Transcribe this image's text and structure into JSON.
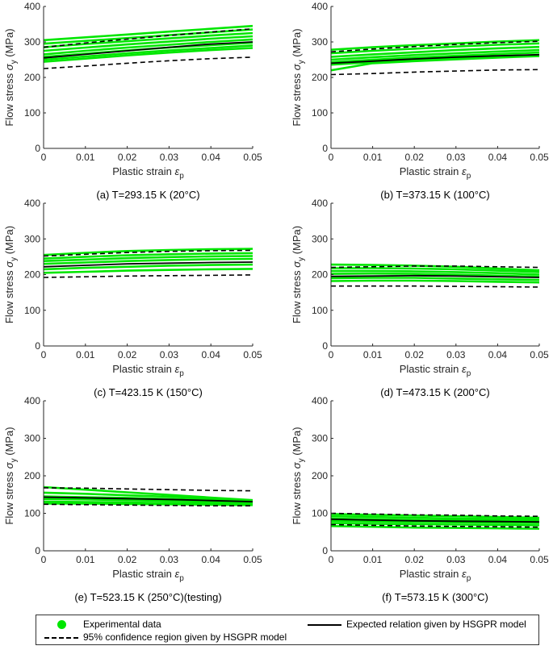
{
  "colors": {
    "experimental": "#00e600",
    "expected": "#000000",
    "confidence": "#000000",
    "axis": "#262626"
  },
  "legend": {
    "experimental": "Experimental data",
    "expected": "Expected relation given by HSGPR model",
    "confidence": "95% confidence region given by HSGPR model"
  },
  "chart_data": [
    {
      "type": "line",
      "caption": "(a) T=293.15 K (20°C)",
      "xlabel": "Plastic strain ε_p",
      "ylabel": "Flow stress σ_y (MPa)",
      "xlim": [
        0,
        0.05
      ],
      "ylim": [
        0,
        400
      ],
      "xticks": [
        "0",
        "0.01",
        "0.02",
        "0.03",
        "0.04",
        "0.05"
      ],
      "yticks": [
        "0",
        "100",
        "200",
        "300",
        "400"
      ],
      "x": [
        0,
        0.01,
        0.02,
        0.03,
        0.04,
        0.05
      ],
      "expected": [
        255,
        265,
        275,
        285,
        294,
        300
      ],
      "ci_upper": [
        285,
        297,
        308,
        318,
        328,
        337
      ],
      "ci_lower": [
        225,
        232,
        240,
        247,
        253,
        257
      ],
      "experimental": [
        [
          305,
          313,
          321,
          329,
          337,
          345
        ],
        [
          295,
          303,
          311,
          319,
          327,
          335
        ],
        [
          285,
          294,
          302,
          310,
          318,
          325
        ],
        [
          275,
          284,
          293,
          301,
          309,
          316
        ],
        [
          265,
          275,
          284,
          292,
          300,
          307
        ],
        [
          258,
          267,
          276,
          284,
          291,
          298
        ],
        [
          250,
          259,
          268,
          276,
          283,
          290
        ],
        [
          244,
          253,
          262,
          270,
          277,
          283
        ]
      ]
    },
    {
      "type": "line",
      "caption": "(b) T=373.15 K (100°C)",
      "xlabel": "Plastic strain ε_p",
      "ylabel": "Flow stress σ_y (MPa)",
      "xlim": [
        0,
        0.05
      ],
      "ylim": [
        0,
        400
      ],
      "xticks": [
        "0",
        "0.01",
        "0.02",
        "0.03",
        "0.04",
        "0.05"
      ],
      "yticks": [
        "0",
        "100",
        "200",
        "300",
        "400"
      ],
      "x": [
        0,
        0.01,
        0.02,
        0.03,
        0.04,
        0.05
      ],
      "expected": [
        240,
        246,
        252,
        257,
        261,
        264
      ],
      "ci_upper": [
        272,
        280,
        287,
        293,
        298,
        302
      ],
      "ci_lower": [
        208,
        211,
        215,
        218,
        221,
        222
      ],
      "experimental": [
        [
          278,
          285,
          291,
          296,
          301,
          305
        ],
        [
          268,
          275,
          281,
          287,
          292,
          296
        ],
        [
          258,
          265,
          271,
          277,
          282,
          286
        ],
        [
          250,
          257,
          263,
          268,
          273,
          277
        ],
        [
          243,
          250,
          256,
          261,
          266,
          270
        ],
        [
          236,
          243,
          249,
          254,
          259,
          263
        ],
        [
          220,
          240,
          246,
          251,
          256,
          260
        ]
      ]
    },
    {
      "type": "line",
      "caption": "(c) T=423.15 K (150°C)",
      "xlabel": "Plastic strain ε_p",
      "ylabel": "Flow stress σ_y (MPa)",
      "xlim": [
        0,
        0.05
      ],
      "ylim": [
        0,
        400
      ],
      "xticks": [
        "0",
        "0.01",
        "0.02",
        "0.03",
        "0.04",
        "0.05"
      ],
      "yticks": [
        "0",
        "100",
        "200",
        "300",
        "400"
      ],
      "x": [
        0,
        0.01,
        0.02,
        0.03,
        0.04,
        0.05
      ],
      "expected": [
        222,
        226,
        230,
        232,
        234,
        235
      ],
      "ci_upper": [
        252,
        257,
        262,
        265,
        267,
        268
      ],
      "ci_lower": [
        192,
        194,
        196,
        197,
        198,
        199
      ],
      "experimental": [
        [
          255,
          261,
          266,
          269,
          271,
          272
        ],
        [
          245,
          250,
          254,
          257,
          259,
          260
        ],
        [
          238,
          242,
          246,
          249,
          251,
          252
        ],
        [
          230,
          234,
          238,
          241,
          243,
          244
        ],
        [
          215,
          219,
          222,
          225,
          227,
          228
        ],
        [
          205,
          208,
          211,
          213,
          215,
          216
        ]
      ]
    },
    {
      "type": "line",
      "caption": "(d) T=473.15 K (200°C)",
      "xlabel": "Plastic strain ε_p",
      "ylabel": "Flow stress σ_y (MPa)",
      "xlim": [
        0,
        0.05
      ],
      "ylim": [
        0,
        400
      ],
      "xticks": [
        "0",
        "0.01",
        "0.02",
        "0.03",
        "0.04",
        "0.05"
      ],
      "yticks": [
        "0",
        "100",
        "200",
        "300",
        "400"
      ],
      "x": [
        0,
        0.01,
        0.02,
        0.03,
        0.04,
        0.05
      ],
      "expected": [
        195,
        196,
        197,
        196,
        194,
        192
      ],
      "ci_upper": [
        220,
        222,
        224,
        224,
        222,
        220
      ],
      "ci_lower": [
        168,
        168,
        168,
        167,
        166,
        165
      ],
      "experimental": [
        [
          228,
          227,
          225,
          222,
          217,
          212
        ],
        [
          218,
          218,
          217,
          215,
          211,
          207
        ],
        [
          210,
          210,
          209,
          207,
          204,
          200
        ],
        [
          202,
          203,
          202,
          200,
          197,
          194
        ],
        [
          190,
          191,
          191,
          189,
          187,
          185
        ],
        [
          182,
          183,
          183,
          182,
          180,
          178
        ]
      ]
    },
    {
      "type": "line",
      "caption": "(e) T=523.15 K (250°C)(testing)",
      "xlabel": "Plastic strain ε_p",
      "ylabel": "Flow stress σ_y (MPa)",
      "xlim": [
        0,
        0.05
      ],
      "ylim": [
        0,
        400
      ],
      "xticks": [
        "0",
        "0.01",
        "0.02",
        "0.03",
        "0.04",
        "0.05"
      ],
      "yticks": [
        "0",
        "100",
        "200",
        "300",
        "400"
      ],
      "x": [
        0,
        0.01,
        0.02,
        0.03,
        0.04,
        0.05
      ],
      "expected": [
        143,
        141,
        139,
        137,
        134,
        131
      ],
      "ci_upper": [
        168,
        167,
        165,
        163,
        161,
        160
      ],
      "ci_lower": [
        124,
        123,
        122,
        121,
        120,
        120
      ],
      "experimental": [
        [
          170,
          163,
          156,
          149,
          142,
          135
        ],
        [
          155,
          152,
          148,
          144,
          139,
          134
        ],
        [
          145,
          143,
          141,
          138,
          135,
          132
        ],
        [
          138,
          137,
          135,
          133,
          131,
          129
        ],
        [
          131,
          130,
          129,
          127,
          126,
          125
        ],
        [
          126,
          126,
          125,
          124,
          123,
          122
        ]
      ]
    },
    {
      "type": "line",
      "caption": "(f) T=573.15 K (300°C)",
      "xlabel": "Plastic strain ε_p",
      "ylabel": "Flow stress σ_y (MPa)",
      "xlim": [
        0,
        0.05
      ],
      "ylim": [
        0,
        400
      ],
      "xticks": [
        "0",
        "0.01",
        "0.02",
        "0.03",
        "0.04",
        "0.05"
      ],
      "yticks": [
        "0",
        "100",
        "200",
        "300",
        "400"
      ],
      "x": [
        0,
        0.01,
        0.02,
        0.03,
        0.04,
        0.05
      ],
      "expected": [
        84,
        82,
        80,
        79,
        78,
        77
      ],
      "ci_upper": [
        100,
        98,
        96,
        95,
        93,
        92
      ],
      "ci_lower": [
        70,
        68,
        66,
        65,
        64,
        63
      ],
      "experimental": [
        [
          98,
          96,
          94,
          92,
          90,
          88
        ],
        [
          92,
          90,
          88,
          86,
          85,
          84
        ],
        [
          86,
          84,
          82,
          81,
          80,
          79
        ],
        [
          80,
          78,
          77,
          76,
          75,
          74
        ],
        [
          74,
          72,
          71,
          70,
          69,
          68
        ],
        [
          66,
          64,
          62,
          61,
          60,
          59
        ]
      ]
    }
  ]
}
